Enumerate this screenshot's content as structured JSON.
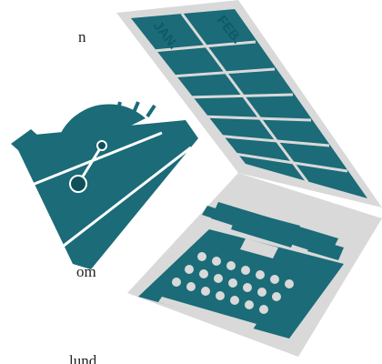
{
  "text_fragments": [
    "n",
    "om",
    "lund"
  ],
  "spreadsheet": {
    "columns": [
      "JAN.",
      "FEB."
    ]
  }
}
